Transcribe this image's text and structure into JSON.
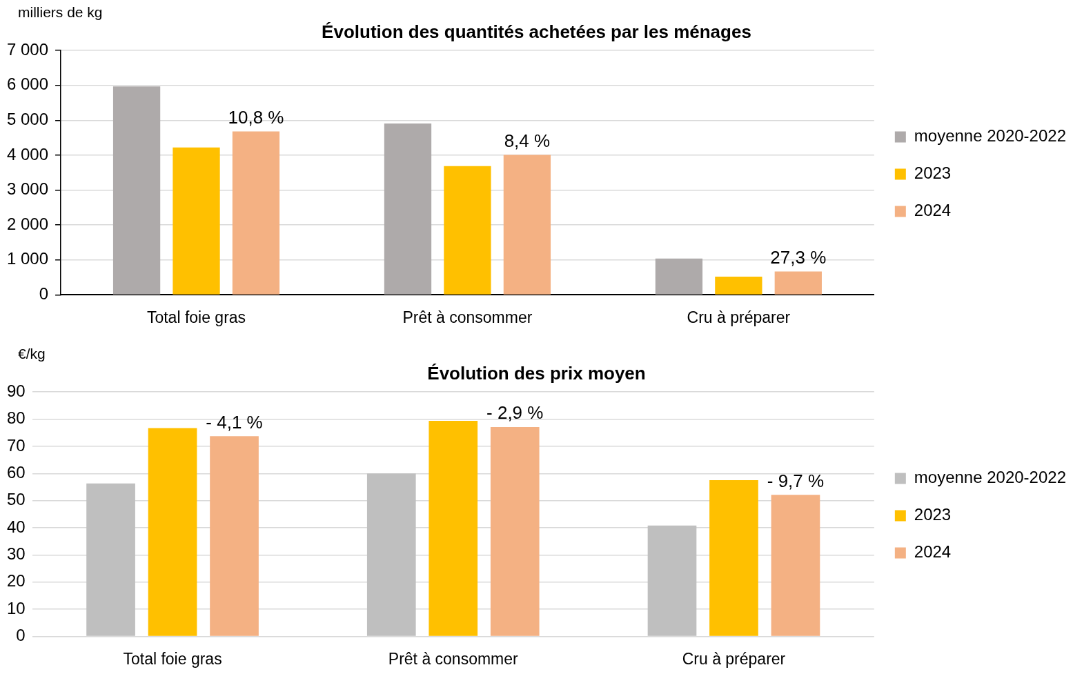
{
  "chart_data": [
    {
      "type": "bar",
      "title": "Évolution des quantités achetées par les ménages",
      "ylabel": "milliers de kg",
      "categories": [
        "Total foie gras",
        "Prêt à consommer",
        "Cru à préparer"
      ],
      "series": [
        {
          "name": "moyenne 2020-2022",
          "color": "#aeaaaa",
          "values": [
            5970,
            4910,
            1040
          ]
        },
        {
          "name": "2023",
          "color": "#ffc000",
          "values": [
            4220,
            3690,
            520
          ]
        },
        {
          "name": "2024",
          "color": "#f4b183",
          "values": [
            4680,
            4010,
            670
          ]
        }
      ],
      "ylim": [
        0,
        7000
      ],
      "yticks": [
        0,
        {
          "value": 1000,
          "label": "1 000"
        },
        {
          "value": 2000,
          "label": "2 000"
        },
        {
          "value": 3000,
          "label": "3 000"
        },
        {
          "value": 4000,
          "label": "4 000"
        },
        {
          "value": 5000,
          "label": "5 000"
        },
        {
          "value": 6000,
          "label": "6 000"
        },
        {
          "value": 7000,
          "label": "7 000"
        }
      ],
      "grid": "y",
      "legend": "right",
      "annotations": [
        "10,8 %",
        "8,4 %",
        "27,3 %"
      ]
    },
    {
      "type": "bar",
      "title": "Évolution des prix moyen",
      "ylabel": "€/kg",
      "categories": [
        "Total foie gras",
        "Prêt à consommer",
        "Cru à préparer"
      ],
      "series": [
        {
          "name": "moyenne 2020-2022",
          "color": "#bfbfbf",
          "values": [
            56.3,
            60.0,
            40.8
          ]
        },
        {
          "name": "2023",
          "color": "#ffc000",
          "values": [
            76.7,
            79.4,
            57.5
          ]
        },
        {
          "name": "2024",
          "color": "#f4b183",
          "values": [
            73.7,
            77.1,
            52.1
          ]
        }
      ],
      "ylim": [
        0,
        90
      ],
      "yticks": [
        0,
        10,
        20,
        30,
        40,
        50,
        60,
        70,
        80,
        90
      ],
      "grid": "y",
      "legend": "right",
      "annotations": [
        "- 4,1 %",
        "- 2,9 %",
        "- 9,7 %"
      ]
    }
  ]
}
